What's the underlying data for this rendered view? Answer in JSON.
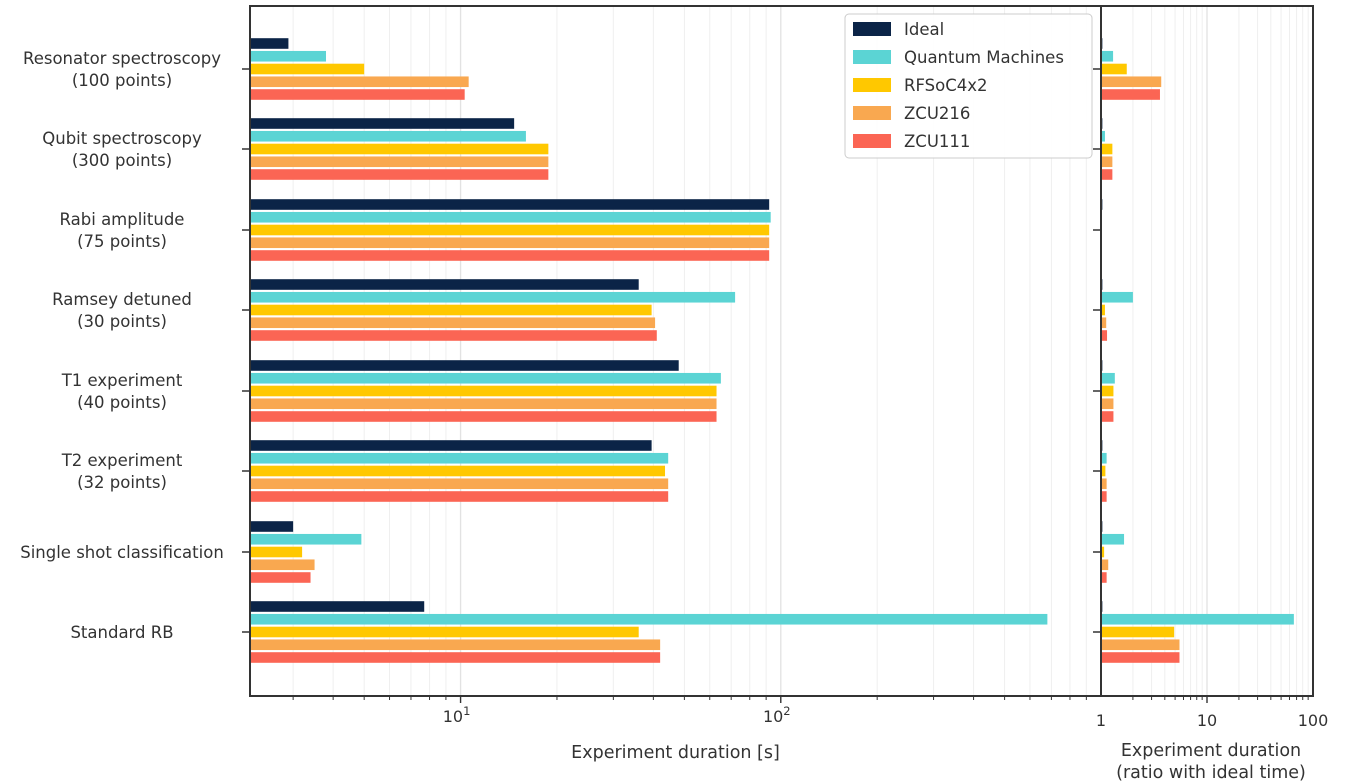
{
  "chart_data": [
    {
      "type": "bar",
      "orientation": "horizontal",
      "xscale": "log",
      "xlabel": "Experiment duration [s]",
      "xlim": [
        2.2,
        1000
      ],
      "xticks": [
        {
          "value": 10,
          "base": "10",
          "exp": "1"
        },
        {
          "value": 100,
          "base": "10",
          "exp": "2"
        }
      ],
      "grid": true,
      "categories": [
        [
          "Resonator spectroscopy",
          "(100 points)"
        ],
        [
          "Qubit spectroscopy",
          "(300 points)"
        ],
        [
          "Rabi amplitude",
          "(75 points)"
        ],
        [
          "Ramsey detuned",
          "(30 points)"
        ],
        [
          "T1 experiment",
          "(40 points)"
        ],
        [
          "T2 experiment",
          "(32 points)"
        ],
        [
          "Single shot classification"
        ],
        [
          "Standard RB"
        ]
      ],
      "series": [
        {
          "name": "Ideal",
          "color": "#0b2447",
          "values": [
            2.9,
            14.7,
            92,
            36,
            48,
            39.5,
            3.0,
            7.7
          ]
        },
        {
          "name": "Quantum Machines",
          "color": "#5bd4d4",
          "values": [
            3.8,
            16.0,
            93,
            72,
            65,
            44.5,
            4.9,
            680
          ]
        },
        {
          "name": "RFSoC4x2",
          "color": "#ffc800",
          "values": [
            5.0,
            18.8,
            92,
            39.5,
            63,
            43.5,
            3.2,
            36
          ]
        },
        {
          "name": "ZCU216",
          "color": "#f9a850",
          "values": [
            10.6,
            18.8,
            92,
            40.5,
            63,
            44.5,
            3.5,
            42
          ]
        },
        {
          "name": "ZCU111",
          "color": "#fb6554",
          "values": [
            10.3,
            18.8,
            92,
            41,
            63,
            44.5,
            3.4,
            42
          ]
        }
      ],
      "legend": "top-right"
    },
    {
      "type": "bar",
      "orientation": "horizontal",
      "xscale": "log",
      "xlabel": [
        "Experiment duration",
        "(ratio with ideal time)"
      ],
      "xlim": [
        1,
        100
      ],
      "xticks": [
        {
          "value": 1,
          "label": "1"
        },
        {
          "value": 10,
          "label": "10"
        },
        {
          "value": 100,
          "label": "100"
        }
      ],
      "grid": true,
      "series": [
        {
          "name": "Ideal",
          "color": "#0b2447",
          "values": [
            1.03,
            1.03,
            1.03,
            1.03,
            1.03,
            1.03,
            1.03,
            1.03
          ]
        },
        {
          "name": "Quantum Machines",
          "color": "#5bd4d4",
          "values": [
            1.3,
            1.09,
            1.01,
            2.0,
            1.35,
            1.13,
            1.65,
            66
          ]
        },
        {
          "name": "RFSoC4x2",
          "color": "#ffc800",
          "values": [
            1.75,
            1.28,
            1.0,
            1.09,
            1.31,
            1.1,
            1.07,
            4.9
          ]
        },
        {
          "name": "ZCU216",
          "color": "#f9a850",
          "values": [
            3.7,
            1.28,
            1.0,
            1.12,
            1.31,
            1.13,
            1.17,
            5.5
          ]
        },
        {
          "name": "ZCU111",
          "color": "#fb6554",
          "values": [
            3.6,
            1.28,
            1.0,
            1.14,
            1.31,
            1.13,
            1.13,
            5.5
          ]
        }
      ]
    }
  ]
}
